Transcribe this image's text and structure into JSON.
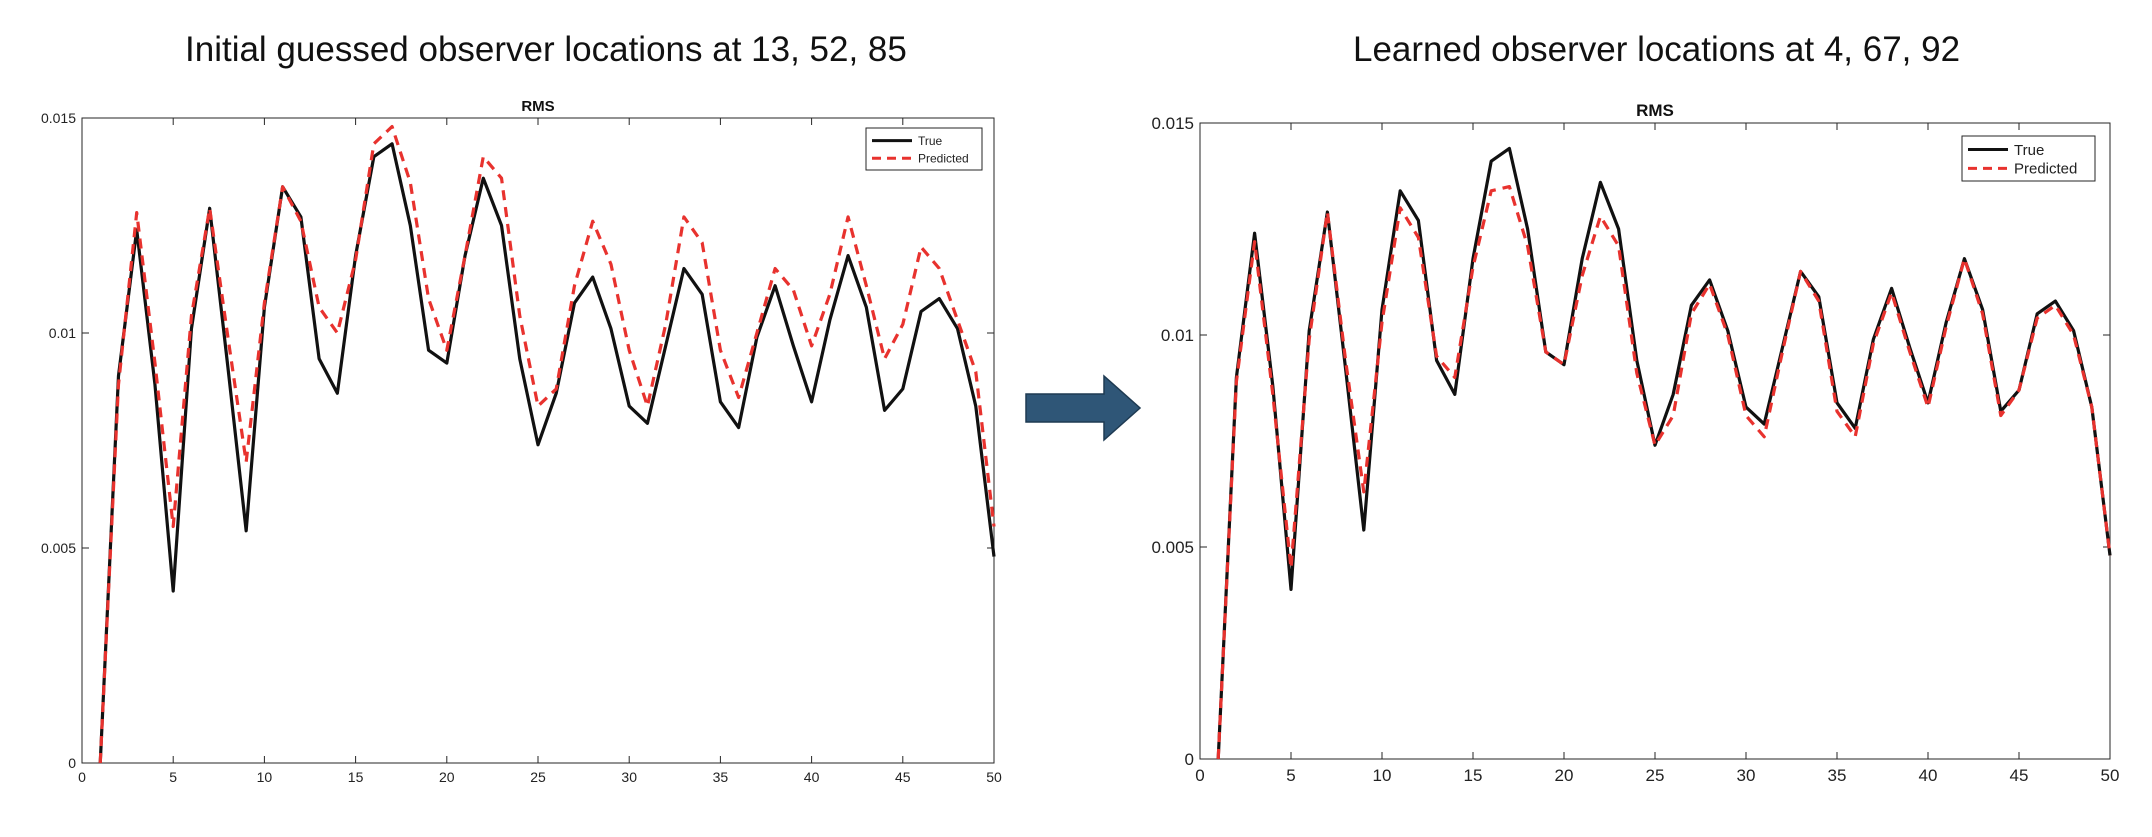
{
  "figure": {
    "left_title": "Initial guessed observer locations at 13, 52, 85",
    "right_title": "Learned observer locations at 4, 67, 92"
  },
  "colors": {
    "true_line": "#111111",
    "predicted_line": "#e8322e",
    "arrow_fill": "#2f5677",
    "arrow_stroke": "#1e3a52"
  },
  "chart_data": [
    {
      "type": "line",
      "title": "RMS",
      "xlabel": "",
      "ylabel": "",
      "xlim": [
        0,
        50
      ],
      "ylim": [
        0,
        0.015
      ],
      "xticks": [
        0,
        5,
        10,
        15,
        20,
        25,
        30,
        35,
        40,
        45,
        50
      ],
      "yticks": [
        0,
        0.005,
        0.01,
        0.015
      ],
      "ytick_labels": [
        "0",
        "0.005",
        "0.01",
        "0.015"
      ],
      "grid": false,
      "legend": "top-right",
      "x": [
        1,
        2,
        3,
        4,
        5,
        6,
        7,
        8,
        9,
        10,
        11,
        12,
        13,
        14,
        15,
        16,
        17,
        18,
        19,
        20,
        21,
        22,
        23,
        24,
        25,
        26,
        27,
        28,
        29,
        30,
        31,
        32,
        33,
        34,
        35,
        36,
        37,
        38,
        39,
        40,
        41,
        42,
        43,
        44,
        45,
        46,
        47,
        48,
        49,
        50
      ],
      "series": [
        {
          "name": "True",
          "style": "solid",
          "values": [
            0.0,
            0.009,
            0.0124,
            0.0088,
            0.004,
            0.0101,
            0.0129,
            0.0092,
            0.0054,
            0.0106,
            0.0134,
            0.0127,
            0.0094,
            0.0086,
            0.0118,
            0.0141,
            0.0144,
            0.0125,
            0.0096,
            0.0093,
            0.0118,
            0.0136,
            0.0125,
            0.0094,
            0.0074,
            0.0086,
            0.0107,
            0.0113,
            0.0101,
            0.0083,
            0.0079,
            0.0097,
            0.0115,
            0.0109,
            0.0084,
            0.0078,
            0.0099,
            0.0111,
            0.0097,
            0.0084,
            0.0103,
            0.0118,
            0.0106,
            0.0082,
            0.0087,
            0.0105,
            0.0108,
            0.0101,
            0.0083,
            0.0048
          ]
        },
        {
          "name": "Predicted",
          "style": "dashed",
          "values": [
            0.0,
            0.0088,
            0.0128,
            0.0093,
            0.0055,
            0.0104,
            0.0129,
            0.0099,
            0.007,
            0.0107,
            0.0134,
            0.0126,
            0.0106,
            0.01,
            0.0117,
            0.0144,
            0.0148,
            0.0135,
            0.0108,
            0.0096,
            0.0118,
            0.0141,
            0.0136,
            0.0104,
            0.0083,
            0.0087,
            0.0111,
            0.0126,
            0.0116,
            0.0096,
            0.0083,
            0.0102,
            0.0127,
            0.0121,
            0.0096,
            0.0085,
            0.01,
            0.0115,
            0.011,
            0.0097,
            0.0109,
            0.0127,
            0.0111,
            0.0094,
            0.0102,
            0.012,
            0.0115,
            0.0103,
            0.0091,
            0.0055
          ]
        }
      ]
    },
    {
      "type": "line",
      "title": "RMS",
      "xlabel": "",
      "ylabel": "",
      "xlim": [
        0,
        50
      ],
      "ylim": [
        0,
        0.015
      ],
      "xticks": [
        0,
        5,
        10,
        15,
        20,
        25,
        30,
        35,
        40,
        45,
        50
      ],
      "yticks": [
        0,
        0.005,
        0.01,
        0.015
      ],
      "ytick_labels": [
        "0",
        "0.005",
        "0.01",
        "0.015"
      ],
      "grid": false,
      "legend": "top-right",
      "x": [
        1,
        2,
        3,
        4,
        5,
        6,
        7,
        8,
        9,
        10,
        11,
        12,
        13,
        14,
        15,
        16,
        17,
        18,
        19,
        20,
        21,
        22,
        23,
        24,
        25,
        26,
        27,
        28,
        29,
        30,
        31,
        32,
        33,
        34,
        35,
        36,
        37,
        38,
        39,
        40,
        41,
        42,
        43,
        44,
        45,
        46,
        47,
        48,
        49,
        50
      ],
      "series": [
        {
          "name": "True",
          "style": "solid",
          "values": [
            0.0,
            0.009,
            0.0124,
            0.0088,
            0.004,
            0.0101,
            0.0129,
            0.0092,
            0.0054,
            0.0106,
            0.0134,
            0.0127,
            0.0094,
            0.0086,
            0.0118,
            0.0141,
            0.0144,
            0.0125,
            0.0096,
            0.0093,
            0.0118,
            0.0136,
            0.0125,
            0.0094,
            0.0074,
            0.0086,
            0.0107,
            0.0113,
            0.0101,
            0.0083,
            0.0079,
            0.0097,
            0.0115,
            0.0109,
            0.0084,
            0.0078,
            0.0099,
            0.0111,
            0.0097,
            0.0084,
            0.0103,
            0.0118,
            0.0106,
            0.0082,
            0.0087,
            0.0105,
            0.0108,
            0.0101,
            0.0083,
            0.0048
          ]
        },
        {
          "name": "Predicted",
          "style": "dashed",
          "values": [
            0.0,
            0.0089,
            0.0122,
            0.0086,
            0.0045,
            0.0099,
            0.0129,
            0.0094,
            0.0063,
            0.0103,
            0.013,
            0.0123,
            0.0095,
            0.009,
            0.0116,
            0.0134,
            0.0135,
            0.0121,
            0.0096,
            0.0093,
            0.0114,
            0.0128,
            0.0121,
            0.0091,
            0.0074,
            0.0081,
            0.0105,
            0.0112,
            0.01,
            0.0081,
            0.0076,
            0.0096,
            0.0115,
            0.0108,
            0.0082,
            0.0076,
            0.0098,
            0.011,
            0.0096,
            0.0083,
            0.0102,
            0.0118,
            0.0105,
            0.0081,
            0.0087,
            0.0104,
            0.0107,
            0.01,
            0.0083,
            0.0048
          ]
        }
      ]
    }
  ]
}
